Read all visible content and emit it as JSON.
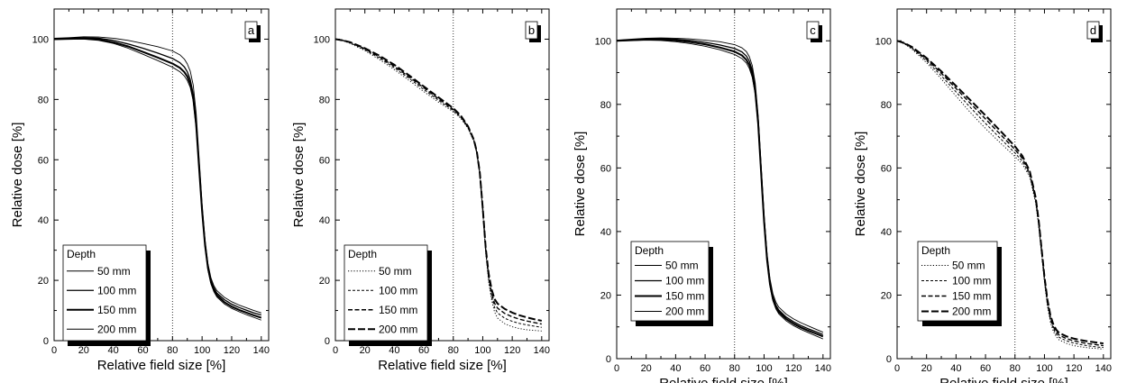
{
  "chart_data": [
    {
      "type": "line",
      "panel_label": "a",
      "xlabel": "Relative field size [%]",
      "ylabel": "Relative dose [%]",
      "xlim": [
        0,
        145
      ],
      "ylim": [
        0,
        110
      ],
      "xticks": [
        0,
        20,
        40,
        60,
        80,
        100,
        120,
        140
      ],
      "yticks": [
        0,
        20,
        40,
        60,
        80,
        100
      ],
      "reference_line_x": 80,
      "legend_title": "Depth",
      "series": [
        {
          "name": "50 mm",
          "line_style": "thin-solid",
          "x": [
            0,
            10,
            20,
            30,
            40,
            50,
            60,
            70,
            80,
            85,
            88,
            90,
            92,
            94,
            96,
            98,
            100,
            102,
            104,
            106,
            108,
            110,
            115,
            120,
            125,
            130,
            135,
            140
          ],
          "y": [
            100.3,
            100.5,
            100.8,
            100.7,
            100.3,
            99.6,
            98.6,
            97.5,
            96.1,
            94.8,
            93.4,
            91.8,
            89.4,
            84.8,
            75.5,
            60.5,
            45.5,
            33.5,
            25.5,
            20.8,
            18.2,
            16.6,
            14.4,
            12.9,
            11.8,
            10.9,
            10.0,
            9.2
          ]
        },
        {
          "name": "100 mm",
          "line_style": "medium-solid",
          "x": [
            0,
            10,
            20,
            30,
            40,
            50,
            60,
            70,
            80,
            85,
            88,
            90,
            92,
            94,
            96,
            98,
            100,
            102,
            104,
            106,
            108,
            110,
            115,
            120,
            125,
            130,
            135,
            140
          ],
          "y": [
            100.1,
            100.3,
            100.5,
            100.3,
            99.6,
            98.4,
            97.0,
            95.4,
            93.6,
            92.2,
            90.8,
            89.2,
            86.6,
            81.8,
            72.6,
            58.0,
            43.6,
            32.2,
            24.6,
            20.0,
            17.5,
            15.8,
            13.6,
            12.1,
            11.0,
            10.1,
            9.2,
            8.5
          ]
        },
        {
          "name": "150 mm",
          "line_style": "thick-solid",
          "x": [
            0,
            10,
            20,
            30,
            40,
            50,
            60,
            70,
            80,
            85,
            88,
            90,
            92,
            94,
            96,
            98,
            100,
            102,
            104,
            106,
            108,
            110,
            115,
            120,
            125,
            130,
            135,
            140
          ],
          "y": [
            100.0,
            100.1,
            100.2,
            99.9,
            99.0,
            97.6,
            95.8,
            93.9,
            91.9,
            90.5,
            89.1,
            87.6,
            85.2,
            80.6,
            71.6,
            57.2,
            43.0,
            31.7,
            24.0,
            19.4,
            16.8,
            15.1,
            12.8,
            11.3,
            10.2,
            9.3,
            8.4,
            7.6
          ]
        },
        {
          "name": "200 mm",
          "line_style": "thin-solid",
          "x": [
            0,
            10,
            20,
            30,
            40,
            50,
            60,
            70,
            80,
            85,
            88,
            90,
            92,
            94,
            96,
            98,
            100,
            102,
            104,
            106,
            108,
            110,
            115,
            120,
            125,
            130,
            135,
            140
          ],
          "y": [
            99.9,
            100.0,
            100.0,
            99.6,
            98.6,
            97.0,
            95.0,
            92.9,
            90.7,
            89.2,
            87.8,
            86.3,
            84.0,
            79.5,
            70.6,
            56.4,
            42.3,
            31.0,
            23.4,
            18.8,
            16.2,
            14.5,
            12.2,
            10.7,
            9.6,
            8.6,
            7.7,
            6.8
          ]
        }
      ]
    },
    {
      "type": "line",
      "panel_label": "b",
      "xlabel": "Relative field size [%]",
      "ylabel": "Relative dose [%]",
      "xlim": [
        0,
        145
      ],
      "ylim": [
        0,
        110
      ],
      "xticks": [
        0,
        20,
        40,
        60,
        80,
        100,
        120,
        140
      ],
      "yticks": [
        0,
        20,
        40,
        60,
        80,
        100
      ],
      "reference_line_x": 80,
      "legend_title": "Depth",
      "series": [
        {
          "name": "50 mm",
          "line_style": "dotted",
          "x": [
            0,
            5,
            10,
            20,
            30,
            40,
            50,
            60,
            70,
            80,
            85,
            90,
            94,
            96,
            98,
            100,
            102,
            104,
            106,
            108,
            110,
            115,
            120,
            125,
            130,
            135,
            140
          ],
          "y": [
            100.0,
            99.5,
            98.6,
            96.2,
            93.2,
            89.9,
            86.3,
            82.6,
            79.1,
            75.9,
            73.8,
            70.4,
            66.0,
            62.0,
            55.0,
            43.0,
            29.0,
            19.5,
            13.5,
            9.5,
            7.5,
            5.6,
            4.6,
            4.0,
            3.6,
            3.4,
            3.2
          ]
        },
        {
          "name": "100 mm",
          "line_style": "short-dash",
          "x": [
            0,
            5,
            10,
            20,
            30,
            40,
            50,
            60,
            70,
            80,
            85,
            90,
            94,
            96,
            98,
            100,
            102,
            104,
            106,
            108,
            110,
            115,
            120,
            125,
            130,
            135,
            140
          ],
          "y": [
            100.0,
            99.5,
            98.8,
            96.5,
            93.7,
            90.5,
            87.0,
            83.3,
            79.7,
            76.3,
            74.1,
            70.6,
            66.2,
            62.2,
            55.2,
            43.3,
            29.6,
            20.4,
            14.6,
            11.0,
            9.2,
            7.4,
            6.4,
            5.7,
            5.2,
            4.8,
            4.4
          ]
        },
        {
          "name": "150 mm",
          "line_style": "medium-dash",
          "x": [
            0,
            5,
            10,
            20,
            30,
            40,
            50,
            60,
            70,
            80,
            85,
            90,
            94,
            96,
            98,
            100,
            102,
            104,
            106,
            108,
            110,
            115,
            120,
            125,
            130,
            135,
            140
          ],
          "y": [
            100.0,
            99.6,
            98.9,
            96.8,
            94.1,
            91.0,
            87.5,
            83.9,
            80.2,
            76.7,
            74.4,
            70.9,
            66.4,
            62.4,
            55.5,
            43.6,
            30.2,
            21.3,
            15.8,
            12.4,
            10.8,
            9.0,
            7.9,
            7.1,
            6.5,
            6.0,
            5.5
          ]
        },
        {
          "name": "200 mm",
          "line_style": "long-dash",
          "x": [
            0,
            5,
            10,
            20,
            30,
            40,
            50,
            60,
            70,
            80,
            85,
            90,
            94,
            96,
            98,
            100,
            102,
            104,
            106,
            108,
            110,
            115,
            120,
            125,
            130,
            135,
            140
          ],
          "y": [
            100.0,
            99.6,
            99.0,
            97.0,
            94.5,
            91.5,
            88.0,
            84.3,
            80.7,
            77.1,
            74.7,
            71.1,
            66.6,
            62.6,
            55.7,
            43.9,
            30.8,
            22.2,
            17.0,
            13.8,
            12.3,
            10.5,
            9.3,
            8.4,
            7.7,
            7.1,
            6.6
          ]
        }
      ]
    },
    {
      "type": "line",
      "panel_label": "c",
      "xlabel": "Relative field size [%]",
      "ylabel": "Relative dose [%]",
      "xlim": [
        0,
        145
      ],
      "ylim": [
        0,
        110
      ],
      "xticks": [
        0,
        20,
        40,
        60,
        80,
        100,
        120,
        140
      ],
      "yticks": [
        0,
        20,
        40,
        60,
        80,
        100
      ],
      "reference_line_x": 80,
      "legend_title": "Depth",
      "series": [
        {
          "name": "50 mm",
          "line_style": "thin-solid",
          "x": [
            0,
            10,
            20,
            30,
            40,
            50,
            60,
            70,
            80,
            85,
            88,
            90,
            92,
            94,
            96,
            98,
            100,
            102,
            104,
            106,
            108,
            110,
            115,
            120,
            125,
            130,
            135,
            140
          ],
          "y": [
            100.2,
            100.5,
            100.8,
            100.9,
            100.8,
            100.6,
            100.2,
            99.7,
            98.8,
            97.8,
            96.6,
            95.0,
            92.2,
            86.8,
            76.5,
            61.0,
            45.5,
            33.2,
            25.2,
            20.4,
            17.8,
            16.2,
            14.0,
            12.5,
            11.3,
            10.3,
            9.3,
            8.3
          ]
        },
        {
          "name": "100 mm",
          "line_style": "medium-solid",
          "x": [
            0,
            10,
            20,
            30,
            40,
            50,
            60,
            70,
            80,
            85,
            88,
            90,
            92,
            94,
            96,
            98,
            100,
            102,
            104,
            106,
            108,
            110,
            115,
            120,
            125,
            130,
            135,
            140
          ],
          "y": [
            100.1,
            100.3,
            100.6,
            100.7,
            100.5,
            100.1,
            99.5,
            98.7,
            97.6,
            96.5,
            95.2,
            93.6,
            90.8,
            85.4,
            75.1,
            59.6,
            44.2,
            32.1,
            24.2,
            19.5,
            16.9,
            15.3,
            13.1,
            11.6,
            10.4,
            9.4,
            8.5,
            7.6
          ]
        },
        {
          "name": "150 mm",
          "line_style": "thick-solid",
          "x": [
            0,
            10,
            20,
            30,
            40,
            50,
            60,
            70,
            80,
            85,
            88,
            90,
            92,
            94,
            96,
            98,
            100,
            102,
            104,
            106,
            108,
            110,
            115,
            120,
            125,
            130,
            135,
            140
          ],
          "y": [
            100.0,
            100.2,
            100.4,
            100.4,
            100.1,
            99.6,
            98.9,
            97.9,
            96.6,
            95.4,
            94.0,
            92.4,
            89.6,
            84.2,
            74.0,
            58.6,
            43.3,
            31.3,
            23.5,
            18.8,
            16.3,
            14.7,
            12.5,
            11.0,
            9.8,
            8.8,
            7.9,
            7.0
          ]
        },
        {
          "name": "200 mm",
          "line_style": "thin-solid",
          "x": [
            0,
            10,
            20,
            30,
            40,
            50,
            60,
            70,
            80,
            85,
            88,
            90,
            92,
            94,
            96,
            98,
            100,
            102,
            104,
            106,
            108,
            110,
            115,
            120,
            125,
            130,
            135,
            140
          ],
          "y": [
            99.9,
            100.1,
            100.2,
            100.1,
            99.7,
            99.1,
            98.3,
            97.2,
            95.7,
            94.4,
            93.0,
            91.3,
            88.5,
            83.2,
            73.1,
            57.8,
            42.5,
            30.6,
            22.8,
            18.2,
            15.7,
            14.1,
            11.9,
            10.4,
            9.2,
            8.2,
            7.2,
            6.2
          ]
        }
      ]
    },
    {
      "type": "line",
      "panel_label": "d",
      "xlabel": "Relative field size [%]",
      "ylabel": "Relative dose [%]",
      "xlim": [
        0,
        145
      ],
      "ylim": [
        0,
        110
      ],
      "xticks": [
        0,
        20,
        40,
        60,
        80,
        100,
        120,
        140
      ],
      "yticks": [
        0,
        20,
        40,
        60,
        80,
        100
      ],
      "reference_line_x": 80,
      "legend_title": "Depth",
      "series": [
        {
          "name": "50 mm",
          "line_style": "dotted",
          "x": [
            0,
            5,
            10,
            20,
            30,
            40,
            50,
            60,
            70,
            80,
            85,
            90,
            94,
            96,
            98,
            100,
            102,
            104,
            106,
            108,
            110,
            115,
            120,
            125,
            130,
            135,
            140
          ],
          "y": [
            100.0,
            99.0,
            97.4,
            93.1,
            88.0,
            82.6,
            77.3,
            72.4,
            67.9,
            63.6,
            61.2,
            57.2,
            49.0,
            42.0,
            33.0,
            24.0,
            16.5,
            11.5,
            8.6,
            6.9,
            5.9,
            4.8,
            4.1,
            3.7,
            3.4,
            3.2,
            3.0
          ]
        },
        {
          "name": "100 mm",
          "line_style": "short-dash",
          "x": [
            0,
            5,
            10,
            20,
            30,
            40,
            50,
            60,
            70,
            80,
            85,
            90,
            94,
            96,
            98,
            100,
            102,
            104,
            106,
            108,
            110,
            115,
            120,
            125,
            130,
            135,
            140
          ],
          "y": [
            100.0,
            99.1,
            97.7,
            93.7,
            89.0,
            83.9,
            78.9,
            74.0,
            69.3,
            64.7,
            62.1,
            57.8,
            49.6,
            42.6,
            33.6,
            24.6,
            17.2,
            12.3,
            9.4,
            7.7,
            6.7,
            5.6,
            4.9,
            4.4,
            4.0,
            3.7,
            3.5
          ]
        },
        {
          "name": "150 mm",
          "line_style": "medium-dash",
          "x": [
            0,
            5,
            10,
            20,
            30,
            40,
            50,
            60,
            70,
            80,
            85,
            90,
            94,
            96,
            98,
            100,
            102,
            104,
            106,
            108,
            110,
            115,
            120,
            125,
            130,
            135,
            140
          ],
          "y": [
            100.0,
            99.2,
            97.9,
            94.2,
            89.8,
            85.0,
            80.2,
            75.4,
            70.6,
            65.8,
            63.0,
            58.4,
            50.2,
            43.2,
            34.2,
            25.2,
            17.9,
            13.0,
            10.1,
            8.4,
            7.4,
            6.3,
            5.6,
            5.1,
            4.7,
            4.4,
            4.1
          ]
        },
        {
          "name": "200 mm",
          "line_style": "long-dash",
          "x": [
            0,
            5,
            10,
            20,
            30,
            40,
            50,
            60,
            70,
            80,
            85,
            90,
            94,
            96,
            98,
            100,
            102,
            104,
            106,
            108,
            110,
            115,
            120,
            125,
            130,
            135,
            140
          ],
          "y": [
            100.0,
            99.3,
            98.1,
            94.6,
            90.4,
            85.8,
            81.2,
            76.5,
            71.7,
            66.8,
            63.8,
            59.0,
            50.8,
            43.8,
            34.8,
            25.8,
            18.6,
            13.7,
            10.8,
            9.1,
            8.1,
            7.0,
            6.3,
            5.8,
            5.4,
            5.1,
            4.8
          ]
        }
      ]
    }
  ]
}
